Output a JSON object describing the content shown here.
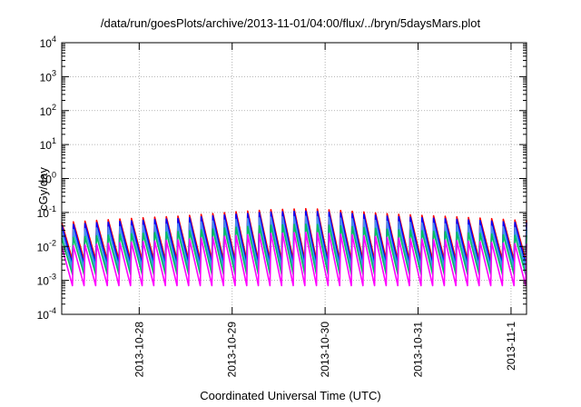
{
  "chart_data": {
    "type": "line",
    "title": "/data/run/goesPlots/archive/2013-11-01/04:00/flux/../bryn/5daysMars.plot",
    "xlabel": "Coordinated Universal Time (UTC)",
    "ylabel": "cGy/day",
    "yscale": "log",
    "ylim": [
      0.0001,
      10000
    ],
    "y_ticks": [
      {
        "base": "10",
        "exp": "-4",
        "value": 0.0001
      },
      {
        "base": "10",
        "exp": "-3",
        "value": 0.001
      },
      {
        "base": "10",
        "exp": "-2",
        "value": 0.01
      },
      {
        "base": "10",
        "exp": "-1",
        "value": 0.1
      },
      {
        "base": "10",
        "exp": "0",
        "value": 1
      },
      {
        "base": "10",
        "exp": "1",
        "value": 10
      },
      {
        "base": "10",
        "exp": "2",
        "value": 100
      },
      {
        "base": "10",
        "exp": "3",
        "value": 1000
      },
      {
        "base": "10",
        "exp": "4",
        "value": 10000
      }
    ],
    "xlim": [
      "2013-10-27T04:00",
      "2013-11-01T04:00"
    ],
    "x_ticks": [
      "2013-10-28",
      "2013-10-29",
      "2013-10-30",
      "2013-10-31",
      "2013-11-1"
    ],
    "grid": true,
    "legend": "none",
    "colors": [
      "#ff0000",
      "#0000ff",
      "#00c8c8",
      "#4c8cf0",
      "#00c060",
      "#ff00ff"
    ],
    "sawtooth": {
      "period_hours": 3,
      "peak_envelope": [
        0.05,
        0.06,
        0.07,
        0.08,
        0.1,
        0.12,
        0.13,
        0.11,
        0.09,
        0.08,
        0.07,
        0.06
      ],
      "series_peak_factor": [
        1.0,
        0.85,
        0.5,
        0.6,
        0.35,
        0.2
      ],
      "series_trough": [
        0.004,
        0.003,
        0.0025,
        0.002,
        0.0015,
        0.0007
      ]
    }
  }
}
